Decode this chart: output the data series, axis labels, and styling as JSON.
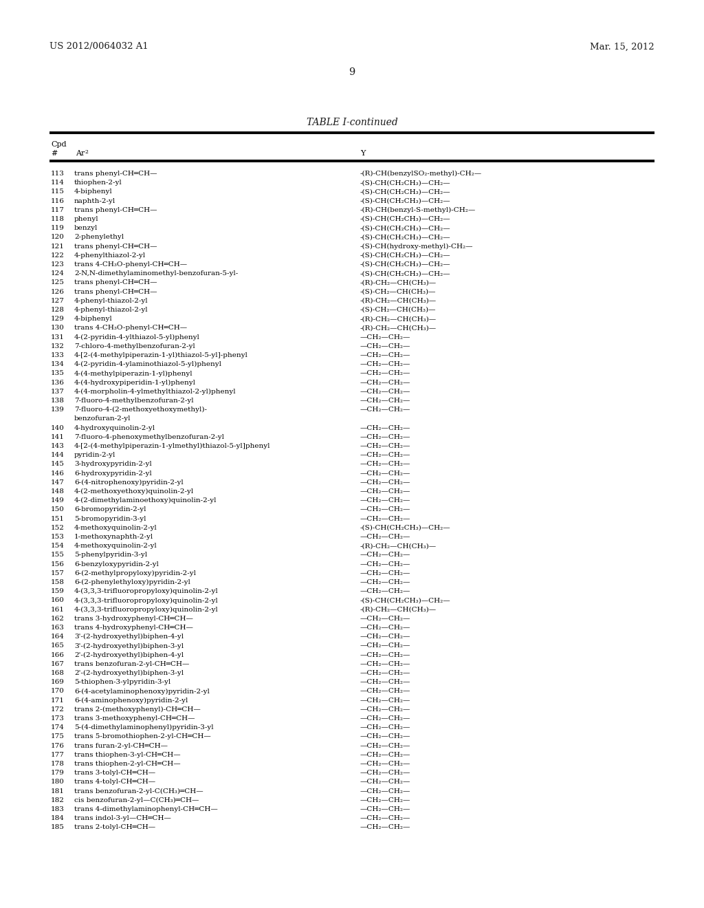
{
  "header_left": "US 2012/0064032 A1",
  "header_right": "Mar. 15, 2012",
  "page_number": "9",
  "table_title": "TABLE I-continued",
  "background_color": "#ffffff",
  "rows": [
    [
      "113",
      "trans phenyl-CH═CH—",
      "-(R)-CH(benzylSO₂-methyl)-CH₂—"
    ],
    [
      "114",
      "thiophen-2-yl",
      "-(S)-CH(CH₂CH₃)—CH₂—"
    ],
    [
      "115",
      "4-biphenyl",
      "-(S)-CH(CH₂CH₃)—CH₂—"
    ],
    [
      "116",
      "naphth-2-yl",
      "-(S)-CH(CH₂CH₃)—CH₂—"
    ],
    [
      "117",
      "trans phenyl-CH═CH—",
      "-(R)-CH(benzyl-S-methyl)-CH₂—"
    ],
    [
      "118",
      "phenyl",
      "-(S)-CH(CH₂CH₃)—CH₂—"
    ],
    [
      "119",
      "benzyl",
      "-(S)-CH(CH₂CH₃)—CH₂—"
    ],
    [
      "120",
      "2-phenylethyl",
      "-(S)-CH(CH₂CH₃)—CH₂—"
    ],
    [
      "121",
      "trans phenyl-CH═CH—",
      "-(S)-CH(hydroxy-methyl)-CH₂—"
    ],
    [
      "122",
      "4-phenylthiazol-2-yl",
      "-(S)-CH(CH₂CH₃)—CH₂—"
    ],
    [
      "123",
      "trans 4-CH₃O-phenyl-CH═CH—",
      "-(S)-CH(CH₂CH₃)—CH₂—"
    ],
    [
      "124",
      "2-N,N-dimethylaminomethyl-benzofuran-5-yl-",
      "-(S)-CH(CH₂CH₃)—CH₂—"
    ],
    [
      "125",
      "trans phenyl-CH═CH—",
      "-(R)-CH₂—CH(CH₃)—"
    ],
    [
      "126",
      "trans phenyl-CH═CH—",
      "-(S)-CH₂—CH(CH₃)—"
    ],
    [
      "127",
      "4-phenyl-thiazol-2-yl",
      "-(R)-CH₂—CH(CH₃)—"
    ],
    [
      "128",
      "4-phenyl-thiazol-2-yl",
      "-(S)-CH₂—CH(CH₃)—"
    ],
    [
      "129",
      "4-biphenyl",
      "-(R)-CH₂—CH(CH₃)—"
    ],
    [
      "130",
      "trans 4-CH₃O-phenyl-CH═CH—",
      "-(R)-CH₂—CH(CH₃)—"
    ],
    [
      "131",
      "4-(2-pyridin-4-ylthiazol-5-yl)phenyl",
      "—CH₂—CH₂—"
    ],
    [
      "132",
      "7-chloro-4-methylbenzofuran-2-yl",
      "—CH₂—CH₂—"
    ],
    [
      "133",
      "4-[2-(4-methylpiperazin-1-yl)thiazol-5-yl]-phenyl",
      "—CH₂—CH₂—"
    ],
    [
      "134",
      "4-(2-pyridin-4-ylaminothiazol-5-yl)phenyl",
      "—CH₂—CH₂—"
    ],
    [
      "135",
      "4-(4-methylpiperazin-1-yl)phenyl",
      "—CH₂—CH₂—"
    ],
    [
      "136",
      "4-(4-hydroxypiperidin-1-yl)phenyl",
      "—CH₂—CH₂—"
    ],
    [
      "137",
      "4-(4-morpholin-4-ylmethylthiazol-2-yl)phenyl",
      "—CH₂—CH₂—"
    ],
    [
      "138",
      "7-fluoro-4-methylbenzofuran-2-yl",
      "—CH₂—CH₂—"
    ],
    [
      "139",
      "7-fluoro-4-(2-methoxyethoxymethyl)-\nbenzofuran-2-yl",
      "—CH₂—CH₂—"
    ],
    [
      "140",
      "4-hydroxyquinolin-2-yl",
      "—CH₂—CH₂—"
    ],
    [
      "141",
      "7-fluoro-4-phenoxymethylbenzofuran-2-yl",
      "—CH₂—CH₂—"
    ],
    [
      "143",
      "4-[2-(4-methylpiperazin-1-ylmethyl)thiazol-5-yl]phenyl",
      "—CH₂—CH₂—"
    ],
    [
      "144",
      "pyridin-2-yl",
      "—CH₂—CH₂—"
    ],
    [
      "145",
      "3-hydroxypyridin-2-yl",
      "—CH₂—CH₂—"
    ],
    [
      "146",
      "6-hydroxypyridin-2-yl",
      "—CH₂—CH₂—"
    ],
    [
      "147",
      "6-(4-nitrophenoxy)pyridin-2-yl",
      "—CH₂—CH₂—"
    ],
    [
      "148",
      "4-(2-methoxyethoxy)quinolin-2-yl",
      "—CH₂—CH₂—"
    ],
    [
      "149",
      "4-(2-dimethylaminoethoxy)quinolin-2-yl",
      "—CH₂—CH₂—"
    ],
    [
      "150",
      "6-bromopyridin-2-yl",
      "—CH₂—CH₂—"
    ],
    [
      "151",
      "5-bromopyridin-3-yl",
      "—CH₂—CH₂—"
    ],
    [
      "152",
      "4-methoxyquinolin-2-yl",
      "-(S)-CH(CH₂CH₃)—CH₂—"
    ],
    [
      "153",
      "1-methoxynaphth-2-yl",
      "—CH₂—CH₂—"
    ],
    [
      "154",
      "4-methoxyquinolin-2-yl",
      "-(R)-CH₂—CH(CH₃)—"
    ],
    [
      "155",
      "5-phenylpyridin-3-yl",
      "—CH₂—CH₂—"
    ],
    [
      "156",
      "6-benzyloxypyridin-2-yl",
      "—CH₂—CH₂—"
    ],
    [
      "157",
      "6-(2-methylpropyloxy)pyridin-2-yl",
      "—CH₂—CH₂—"
    ],
    [
      "158",
      "6-(2-phenylethyloxy)pyridin-2-yl",
      "—CH₂—CH₂—"
    ],
    [
      "159",
      "4-(3,3,3-trifluoropropyloxy)quinolin-2-yl",
      "—CH₂—CH₂—"
    ],
    [
      "160",
      "4-(3,3,3-trifluoropropyloxy)quinolin-2-yl",
      "-(S)-CH(CH₂CH₃)—CH₂—"
    ],
    [
      "161",
      "4-(3,3,3-trifluoropropyloxy)quinolin-2-yl",
      "-(R)-CH₂—CH(CH₃)—"
    ],
    [
      "162",
      "trans 3-hydroxyphenyl-CH═CH—",
      "—CH₂—CH₂—"
    ],
    [
      "163",
      "trans 4-hydroxyphenyl-CH═CH—",
      "—CH₂—CH₂—"
    ],
    [
      "164",
      "3'-(2-hydroxyethyl)biphen-4-yl",
      "—CH₂—CH₂—"
    ],
    [
      "165",
      "3'-(2-hydroxyethyl)biphen-3-yl",
      "—CH₂—CH₂—"
    ],
    [
      "166",
      "2'-(2-hydroxyethyl)biphen-4-yl",
      "—CH₂—CH₂—"
    ],
    [
      "167",
      "trans benzofuran-2-yl-CH═CH—",
      "—CH₂—CH₂—"
    ],
    [
      "168",
      "2'-(2-hydroxyethyl)biphen-3-yl",
      "—CH₂—CH₂—"
    ],
    [
      "169",
      "5-thiophen-3-ylpyridin-3-yl",
      "—CH₂—CH₂—"
    ],
    [
      "170",
      "6-(4-acetylaminophenoxy)pyridin-2-yl",
      "—CH₂—CH₂—"
    ],
    [
      "171",
      "6-(4-aminophenoxy)pyridin-2-yl",
      "—CH₂—CH₂—"
    ],
    [
      "172",
      "trans 2-(methoxyphenyl)-CH═CH—",
      "—CH₂—CH₂—"
    ],
    [
      "173",
      "trans 3-methoxyphenyl-CH═CH—",
      "—CH₂—CH₂—"
    ],
    [
      "174",
      "5-(4-dimethylaminophenyl)pyridin-3-yl",
      "—CH₂—CH₂—"
    ],
    [
      "175",
      "trans 5-bromothiophen-2-yl-CH═CH—",
      "—CH₂—CH₂—"
    ],
    [
      "176",
      "trans furan-2-yl-CH═CH—",
      "—CH₂—CH₂—"
    ],
    [
      "177",
      "trans thiophen-3-yl-CH═CH—",
      "—CH₂—CH₂—"
    ],
    [
      "178",
      "trans thiophen-2-yl-CH═CH—",
      "—CH₂—CH₂—"
    ],
    [
      "179",
      "trans 3-tolyl-CH═CH—",
      "—CH₂—CH₂—"
    ],
    [
      "180",
      "trans 4-tolyl-CH═CH—",
      "—CH₂—CH₂—"
    ],
    [
      "181",
      "trans benzofuran-2-yl-C(CH₃)═CH—",
      "—CH₂—CH₂—"
    ],
    [
      "182",
      "cis benzofuran-2-yl—C(CH₃)═CH—",
      "—CH₂—CH₂—"
    ],
    [
      "183",
      "trans 4-dimethylaminophenyl-CH═CH—",
      "—CH₂—CH₂—"
    ],
    [
      "184",
      "trans indol-3-yl—CH═CH—",
      "—CH₂—CH₂—"
    ],
    [
      "185",
      "trans 2-tolyl-CH═CH—",
      "—CH₂—CH₂—"
    ]
  ]
}
